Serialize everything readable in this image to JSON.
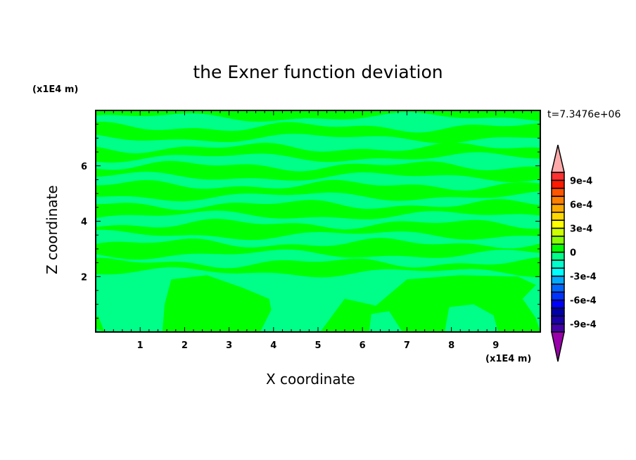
{
  "chart_data": {
    "type": "contour",
    "title": "the Exner function deviation",
    "xlabel": "X coordinate",
    "ylabel": "Z coordinate",
    "x_unit": "(x1E4 m)",
    "y_unit": "(x1E4 m)",
    "time_label": "t=7.3476e+06",
    "xlim": [
      0,
      10
    ],
    "ylim": [
      0,
      8
    ],
    "x_ticks": [
      "1",
      "2",
      "3",
      "4",
      "5",
      "6",
      "7",
      "8",
      "9"
    ],
    "y_ticks": [
      "2",
      "4",
      "6"
    ],
    "field_colors": {
      "0_to_1e-4": "#00ff00",
      "-1e-4_to_0": "#00ff88"
    },
    "colorbar": {
      "levels_min": -0.001,
      "levels_max": 0.001,
      "step": 0.0001,
      "tick_labels": [
        "9e-4",
        "6e-4",
        "3e-4",
        "0",
        "-3e-4",
        "-6e-4",
        "-9e-4"
      ],
      "tick_values": [
        0.0009,
        0.0006,
        0.0003,
        0,
        -0.0003,
        -0.0006,
        -0.0009
      ],
      "colors_low_to_high": [
        "#4400aa",
        "#1a00aa",
        "#0000aa",
        "#0000ff",
        "#0033ff",
        "#0066ff",
        "#00aaff",
        "#00ffff",
        "#00ffcc",
        "#00ff88",
        "#00ff00",
        "#88ff00",
        "#ccff00",
        "#ffff00",
        "#ffd700",
        "#ffaa00",
        "#ff7f00",
        "#ff5500",
        "#ff1a00",
        "#ff3030"
      ],
      "over_color": "#ffaaaa",
      "under_color": "#9900aa"
    }
  }
}
